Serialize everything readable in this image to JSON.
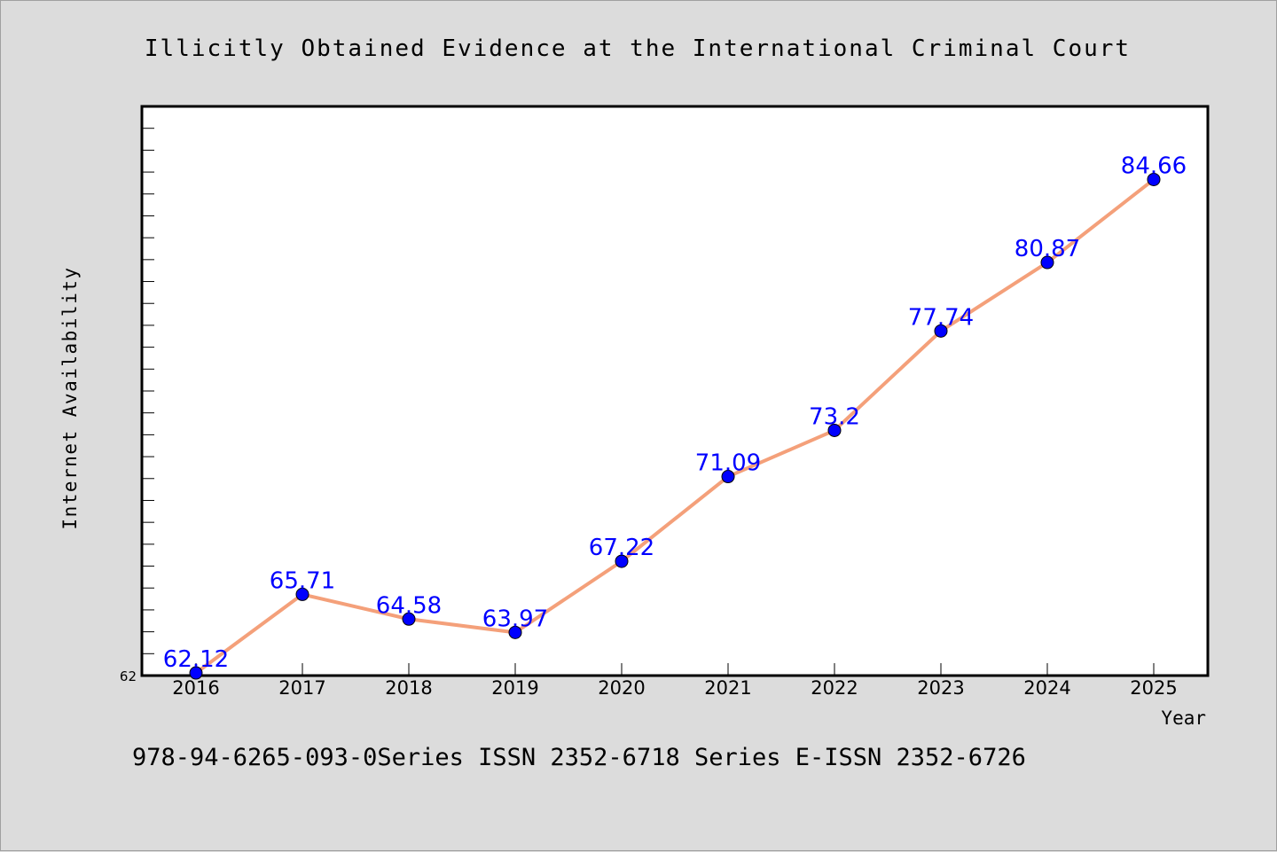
{
  "chart_data": {
    "type": "line",
    "title": "Illicitly Obtained Evidence at the International Criminal Court",
    "xlabel": "Year",
    "ylabel": "Internet Availability",
    "categories": [
      "2016",
      "2017",
      "2018",
      "2019",
      "2020",
      "2021",
      "2022",
      "2023",
      "2024",
      "2025"
    ],
    "series": [
      {
        "values": [
          62.12,
          65.71,
          64.58,
          63.97,
          67.22,
          71.09,
          73.2,
          77.74,
          80.87,
          84.66
        ],
        "labels": [
          "62.12",
          "65.71",
          "64.58",
          "63.97",
          "67.22",
          "71.09",
          "73.2",
          "77.74",
          "80.87",
          "84.66"
        ]
      }
    ],
    "y_tick_labels": [
      "62"
    ],
    "ylim": [
      62,
      88
    ],
    "line_color": "#f4a07a",
    "marker_color": "#0000ff",
    "label_color": "#0000ff",
    "grid": false,
    "legend": "none"
  },
  "footer_text": "978-94-6265-093-0Series ISSN 2352-6718 Series E-ISSN 2352-6726"
}
